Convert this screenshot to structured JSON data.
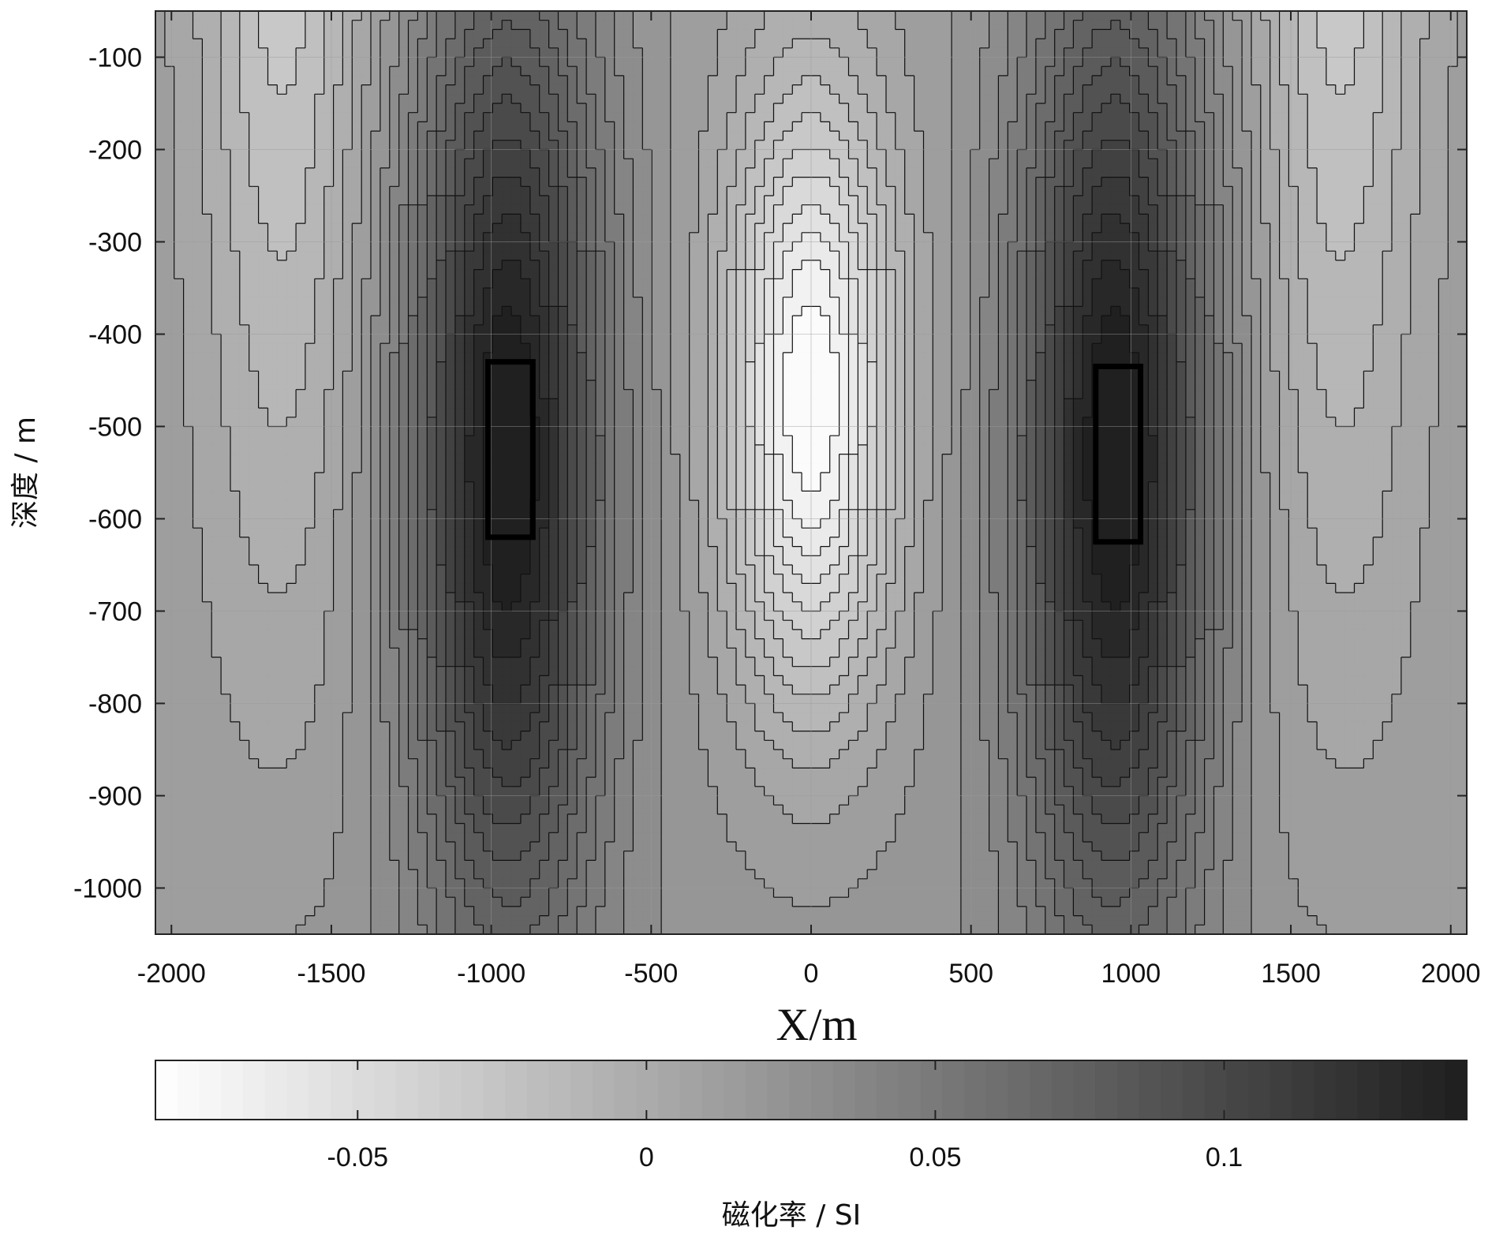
{
  "chart_data": {
    "type": "heatmap",
    "style": "filled-contour",
    "xlabel": "X/m",
    "ylabel": "深度 / m",
    "xlim": [
      -2050,
      2050
    ],
    "ylim": [
      -1050,
      -50
    ],
    "x_ticks": [
      -2000,
      -1500,
      -1000,
      -500,
      0,
      500,
      1000,
      1500,
      2000
    ],
    "y_ticks": [
      -100,
      -200,
      -300,
      -400,
      -500,
      -600,
      -700,
      -800,
      -900,
      -1000
    ],
    "grid": true,
    "colormap": "gray-reversed",
    "colorbar": {
      "label": "磁化率 / SI",
      "range": [
        -0.085,
        0.142
      ],
      "ticks": [
        -0.05,
        0,
        0.05,
        0.1
      ],
      "tick_labels": [
        "-0.05",
        "0",
        "0.05",
        "0.1"
      ]
    },
    "anomalies": [
      {
        "center_x": -950,
        "center_y": -530,
        "peak_value": 0.13
      },
      {
        "center_x": 950,
        "center_y": -530,
        "peak_value": 0.13
      },
      {
        "center_x": 0,
        "center_y": -470,
        "peak_value": -0.085
      }
    ],
    "source_bodies": [
      {
        "x_min": -1010,
        "x_max": -870,
        "y_top": -430,
        "y_bottom": -620
      },
      {
        "x_min": 890,
        "x_max": 1030,
        "y_top": -435,
        "y_bottom": -625
      }
    ]
  }
}
